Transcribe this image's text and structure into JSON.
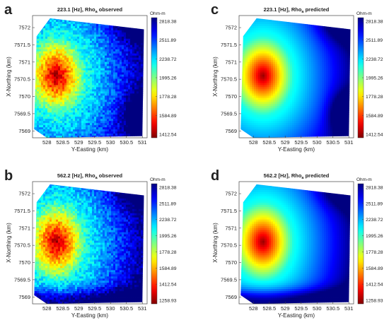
{
  "chart_data": [
    {
      "type": "heatmap",
      "panel_letter": "a",
      "title": "223.1 [Hz], Rho",
      "title_sub": "a",
      "title_suffix": " observed",
      "xlabel": "Y-Easting (km)",
      "ylabel": "X-Northing (km)",
      "xticks": [
        "528",
        "528.5",
        "529",
        "529.5",
        "530",
        "530.5",
        "531"
      ],
      "yticks": [
        "7572",
        "7571.5",
        "7571",
        "7570.5",
        "7570",
        "7569.5",
        "7569"
      ],
      "xlim": [
        527.55,
        531.15
      ],
      "ylim": [
        7568.8,
        7572.35
      ],
      "colorbar": {
        "unit": "Ohm-m",
        "ticks": [
          "2818.38",
          "2511.89",
          "2238.72",
          "1995.26",
          "1778.28",
          "1584.89",
          "1412.54"
        ],
        "colormap": "jet-reversed"
      },
      "field": {
        "low_center": [
          528.3,
          7570.6
        ],
        "low_value": 1412.54,
        "high_value": 2818.38,
        "high_corners": [
          "north-east",
          "south-east"
        ],
        "texture": "noisy"
      }
    },
    {
      "type": "heatmap",
      "panel_letter": "c",
      "title": "223.1 [Hz], Rho",
      "title_sub": "a",
      "title_suffix": " predicted",
      "xlabel": "Y-Easting (km)",
      "ylabel": "X-Northing (km)",
      "xticks": [
        "528",
        "528.5",
        "529",
        "529.5",
        "530",
        "530.5",
        "531"
      ],
      "yticks": [
        "7572",
        "7571.5",
        "7571",
        "7570.5",
        "7570",
        "7569.5",
        "7569"
      ],
      "xlim": [
        527.55,
        531.15
      ],
      "ylim": [
        7568.8,
        7572.35
      ],
      "colorbar": {
        "unit": "Ohm-m",
        "ticks": [
          "2818.38",
          "2511.89",
          "2238.72",
          "1995.26",
          "1778.28",
          "1584.89",
          "1412.54"
        ],
        "colormap": "jet-reversed"
      },
      "field": {
        "low_center": [
          528.3,
          7570.6
        ],
        "low_value": 1412.54,
        "high_value": 2818.38,
        "high_corners": [
          "north-east",
          "south-east"
        ],
        "texture": "smooth"
      }
    },
    {
      "type": "heatmap",
      "panel_letter": "b",
      "title": "562.2 [Hz], Rho",
      "title_sub": "a",
      "title_suffix": " observed",
      "xlabel": "Y-Easting (km)",
      "ylabel": "X-Northing (km)",
      "xticks": [
        "528",
        "528.5",
        "529",
        "529.5",
        "530",
        "530.5",
        "531"
      ],
      "yticks": [
        "7572",
        "7571.5",
        "7571",
        "7570.5",
        "7570",
        "7569.5",
        "7569"
      ],
      "xlim": [
        527.55,
        531.15
      ],
      "ylim": [
        7568.8,
        7572.35
      ],
      "colorbar": {
        "unit": "Ohm-m",
        "ticks": [
          "2818.38",
          "2511.89",
          "2238.72",
          "1995.26",
          "1778.28",
          "1584.89",
          "1412.54",
          "1258.93"
        ],
        "colormap": "jet-reversed"
      },
      "field": {
        "low_center": [
          528.3,
          7570.6
        ],
        "low_value": 1258.93,
        "high_value": 2818.38,
        "high_corners": [
          "north-east",
          "south"
        ],
        "texture": "noisy"
      }
    },
    {
      "type": "heatmap",
      "panel_letter": "d",
      "title": "562.2 [Hz], Rho",
      "title_sub": "a",
      "title_suffix": " predicted",
      "xlabel": "Y-Easting (km)",
      "ylabel": "X-Northing (km)",
      "xticks": [
        "528",
        "528.5",
        "529",
        "529.5",
        "530",
        "530.5",
        "531"
      ],
      "yticks": [
        "7572",
        "7571.5",
        "7571",
        "7570.5",
        "7570",
        "7569.5",
        "7569"
      ],
      "xlim": [
        527.55,
        531.15
      ],
      "ylim": [
        7568.8,
        7572.35
      ],
      "colorbar": {
        "unit": "Ohm-m",
        "ticks": [
          "2818.38",
          "2511.89",
          "2238.72",
          "1995.26",
          "1778.28",
          "1584.89",
          "1412.54",
          "1258.93"
        ],
        "colormap": "jet-reversed"
      },
      "field": {
        "low_center": [
          528.3,
          7570.6
        ],
        "low_value": 1258.93,
        "high_value": 2818.38,
        "high_corners": [
          "north-east",
          "south"
        ],
        "texture": "smooth"
      }
    }
  ]
}
